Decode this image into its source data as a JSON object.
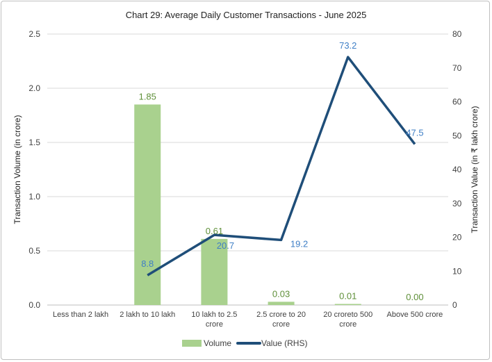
{
  "chart_data": {
    "type": "bar+line",
    "title": "Chart 29: Average Daily Customer Transactions - June 2025",
    "categories": [
      "Less than 2 lakh",
      "2 lakh to 10 lakh",
      "10 lakh to 2.5 crore",
      "2.5 crore to 20 crore",
      "20 croreto 500 crore",
      "Above 500 crore"
    ],
    "category_lines": [
      [
        "Less than 2 lakh"
      ],
      [
        "2 lakh to 10 lakh"
      ],
      [
        "10 lakh to 2.5",
        "crore"
      ],
      [
        "2.5 crore to 20",
        "crore"
      ],
      [
        "20 croreto 500",
        "crore"
      ],
      [
        "Above 500 crore"
      ]
    ],
    "series": [
      {
        "name": "Volume",
        "type": "bar",
        "axis": "left",
        "color": "#a9d18e",
        "label_color": "#5e8f38",
        "values": [
          null,
          1.85,
          0.61,
          0.03,
          0.01,
          0.0
        ],
        "labels": [
          "",
          "1.85",
          "0.61",
          "0.03",
          "0.01",
          "0.00"
        ]
      },
      {
        "name": "Value (RHS)",
        "type": "line",
        "axis": "right",
        "color": "#1f4e79",
        "label_color": "#3f7fc6",
        "values": [
          null,
          8.8,
          20.7,
          19.2,
          73.2,
          47.5
        ],
        "labels": [
          "",
          "8.8",
          "20.7",
          "19.2",
          "73.2",
          "47.5"
        ]
      }
    ],
    "ylabel": "Transaction Volume (in crore)",
    "y2label": "Transaction Value (in ₹ lakh crore)",
    "ylim": [
      0,
      2.5
    ],
    "y2lim": [
      0,
      80
    ],
    "yticks": [
      "0.0",
      "0.5",
      "1.0",
      "1.5",
      "2.0",
      "2.5"
    ],
    "y2ticks": [
      "0",
      "10",
      "20",
      "30",
      "40",
      "50",
      "60",
      "70",
      "80"
    ],
    "grid": true,
    "legend": "bottom"
  }
}
